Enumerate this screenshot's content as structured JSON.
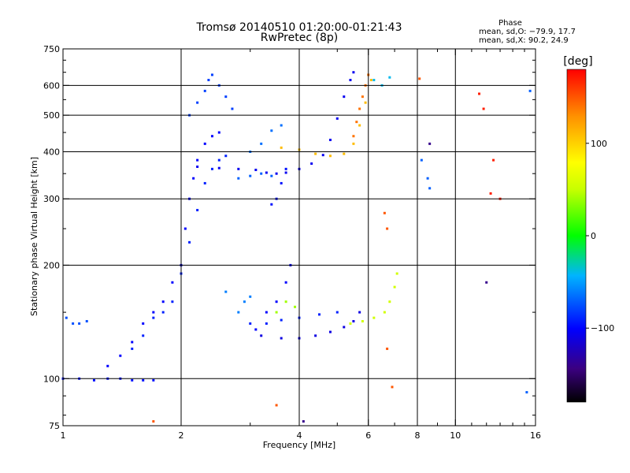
{
  "chart_data": {
    "type": "scatter",
    "title": "Tromsø 20140510 01:20:00-01:21:43",
    "subtitle": "RwPretec (8p)",
    "xlabel": "Frequency [MHz]",
    "ylabel": "Stationary phase Virtual Height [km]",
    "x_scale": "log",
    "y_scale": "log",
    "xlim": [
      1,
      16
    ],
    "ylim": [
      75,
      750
    ],
    "x_ticks": [
      1,
      2,
      4,
      6,
      8,
      10,
      16
    ],
    "x_tick_labels": [
      "1",
      "2",
      "4",
      "6",
      "8",
      "10",
      "16"
    ],
    "y_ticks": [
      75,
      100,
      200,
      300,
      400,
      500,
      600,
      750
    ],
    "y_tick_labels": [
      "75",
      "100",
      "200",
      "300",
      "400",
      "500",
      "600",
      "750"
    ],
    "grid": true,
    "stats": {
      "heading": "Phase",
      "line_o": "mean, sd,O: −79.9, 17.7",
      "line_x": "mean, sd,X:  90.2, 24.9"
    },
    "colorbar": {
      "title": "[deg]",
      "range": [
        -180,
        180
      ],
      "ticks": [
        100,
        0,
        -100
      ],
      "tick_labels": [
        "100",
        "0",
        "−100"
      ]
    },
    "traces": [
      {
        "phase": -95,
        "points": [
          [
            1.0,
            100
          ],
          [
            1.1,
            100
          ],
          [
            1.2,
            99
          ],
          [
            1.3,
            100
          ],
          [
            1.4,
            100
          ],
          [
            1.5,
            99
          ],
          [
            1.6,
            99
          ],
          [
            1.7,
            99
          ]
        ]
      },
      {
        "phase": -75,
        "points": [
          [
            1.02,
            145
          ],
          [
            1.06,
            140
          ],
          [
            1.1,
            140
          ],
          [
            1.15,
            142
          ]
        ]
      },
      {
        "phase": -100,
        "points": [
          [
            1.3,
            108
          ],
          [
            1.4,
            115
          ],
          [
            1.5,
            125
          ],
          [
            1.6,
            140
          ],
          [
            1.7,
            150
          ],
          [
            1.8,
            160
          ],
          [
            1.9,
            180
          ],
          [
            2.0,
            200
          ],
          [
            2.05,
            250
          ],
          [
            2.1,
            300
          ],
          [
            2.15,
            340
          ],
          [
            2.2,
            380
          ],
          [
            2.3,
            420
          ],
          [
            2.4,
            440
          ],
          [
            2.5,
            450
          ]
        ]
      },
      {
        "phase": -90,
        "points": [
          [
            1.5,
            120
          ],
          [
            1.6,
            130
          ],
          [
            1.7,
            145
          ],
          [
            1.8,
            150
          ],
          [
            1.9,
            160
          ],
          [
            2.0,
            190
          ],
          [
            2.1,
            230
          ],
          [
            2.2,
            280
          ],
          [
            2.3,
            330
          ],
          [
            2.4,
            360
          ],
          [
            2.5,
            380
          ],
          [
            2.6,
            390
          ]
        ]
      },
      {
        "phase": -80,
        "points": [
          [
            2.1,
            500
          ],
          [
            2.2,
            540
          ],
          [
            2.3,
            580
          ],
          [
            2.35,
            620
          ],
          [
            2.4,
            640
          ],
          [
            2.5,
            600
          ],
          [
            2.6,
            560
          ],
          [
            2.7,
            520
          ]
        ]
      },
      {
        "phase": -105,
        "points": [
          [
            2.2,
            365
          ],
          [
            2.5,
            362
          ],
          [
            2.8,
            360
          ],
          [
            3.1,
            358
          ],
          [
            3.3,
            352
          ],
          [
            3.5,
            350
          ],
          [
            3.7,
            352
          ],
          [
            4.0,
            360
          ],
          [
            4.3,
            372
          ],
          [
            4.6,
            392
          ],
          [
            4.8,
            430
          ],
          [
            5.0,
            490
          ],
          [
            5.2,
            560
          ],
          [
            5.4,
            620
          ],
          [
            5.5,
            650
          ]
        ]
      },
      {
        "phase": -70,
        "points": [
          [
            2.8,
            340
          ],
          [
            3.0,
            345
          ],
          [
            3.2,
            350
          ],
          [
            3.4,
            345
          ]
        ]
      },
      {
        "phase": -65,
        "points": [
          [
            3.0,
            400
          ],
          [
            3.2,
            420
          ],
          [
            3.4,
            455
          ],
          [
            3.6,
            470
          ]
        ]
      },
      {
        "phase": -95,
        "points": [
          [
            3.4,
            290
          ],
          [
            3.5,
            300
          ],
          [
            3.6,
            330
          ],
          [
            3.7,
            360
          ]
        ]
      },
      {
        "phase": -100,
        "points": [
          [
            3.1,
            135
          ],
          [
            3.3,
            150
          ],
          [
            3.5,
            160
          ],
          [
            3.7,
            180
          ],
          [
            3.8,
            200
          ]
        ]
      },
      {
        "phase": -110,
        "points": [
          [
            3.2,
            130
          ],
          [
            3.6,
            128
          ],
          [
            4.0,
            128
          ],
          [
            4.4,
            130
          ],
          [
            4.8,
            133
          ],
          [
            5.2,
            137
          ],
          [
            5.5,
            142
          ],
          [
            5.7,
            150
          ]
        ]
      },
      {
        "phase": -90,
        "points": [
          [
            3.0,
            140
          ],
          [
            3.3,
            140
          ],
          [
            3.6,
            143
          ],
          [
            4.0,
            145
          ],
          [
            4.5,
            148
          ],
          [
            5.0,
            150
          ]
        ]
      },
      {
        "phase": 55,
        "points": [
          [
            5.4,
            140
          ],
          [
            5.8,
            142
          ],
          [
            6.2,
            145
          ],
          [
            6.6,
            150
          ],
          [
            6.8,
            160
          ],
          [
            7.0,
            175
          ],
          [
            7.1,
            190
          ]
        ]
      },
      {
        "phase": 110,
        "points": [
          [
            3.6,
            410
          ],
          [
            4.0,
            405
          ],
          [
            4.4,
            395
          ],
          [
            4.8,
            390
          ],
          [
            5.2,
            395
          ],
          [
            5.5,
            420
          ],
          [
            5.7,
            470
          ],
          [
            5.9,
            540
          ],
          [
            6.1,
            620
          ]
        ]
      },
      {
        "phase": 140,
        "points": [
          [
            5.5,
            440
          ],
          [
            5.6,
            480
          ],
          [
            5.7,
            520
          ],
          [
            5.8,
            560
          ],
          [
            5.9,
            600
          ],
          [
            6.0,
            640
          ]
        ]
      },
      {
        "phase": 40,
        "points": [
          [
            3.5,
            150
          ],
          [
            3.7,
            160
          ],
          [
            3.9,
            155
          ]
        ]
      },
      {
        "phase": -60,
        "points": [
          [
            2.8,
            150
          ],
          [
            2.9,
            160
          ],
          [
            3.0,
            165
          ],
          [
            2.6,
            170
          ]
        ]
      },
      {
        "phase": -40,
        "points": [
          [
            6.2,
            620
          ],
          [
            6.5,
            600
          ],
          [
            6.8,
            630
          ]
        ]
      },
      {
        "phase": 170,
        "points": [
          [
            11.5,
            570
          ],
          [
            11.8,
            520
          ],
          [
            13.0,
            300
          ],
          [
            12.5,
            380
          ],
          [
            12.3,
            310
          ]
        ]
      },
      {
        "phase": -70,
        "points": [
          [
            8.2,
            380
          ],
          [
            8.6,
            320
          ],
          [
            8.5,
            340
          ],
          [
            15.5,
            580
          ],
          [
            15.2,
            92
          ]
        ]
      },
      {
        "phase": 150,
        "points": [
          [
            6.7,
            120
          ],
          [
            6.9,
            95
          ],
          [
            6.7,
            250
          ],
          [
            6.6,
            275
          ],
          [
            3.5,
            85
          ],
          [
            1.7,
            77
          ],
          [
            8.1,
            625
          ]
        ]
      },
      {
        "phase": -140,
        "points": [
          [
            12.0,
            180
          ],
          [
            8.6,
            420
          ],
          [
            4.1,
            77
          ]
        ]
      }
    ]
  }
}
